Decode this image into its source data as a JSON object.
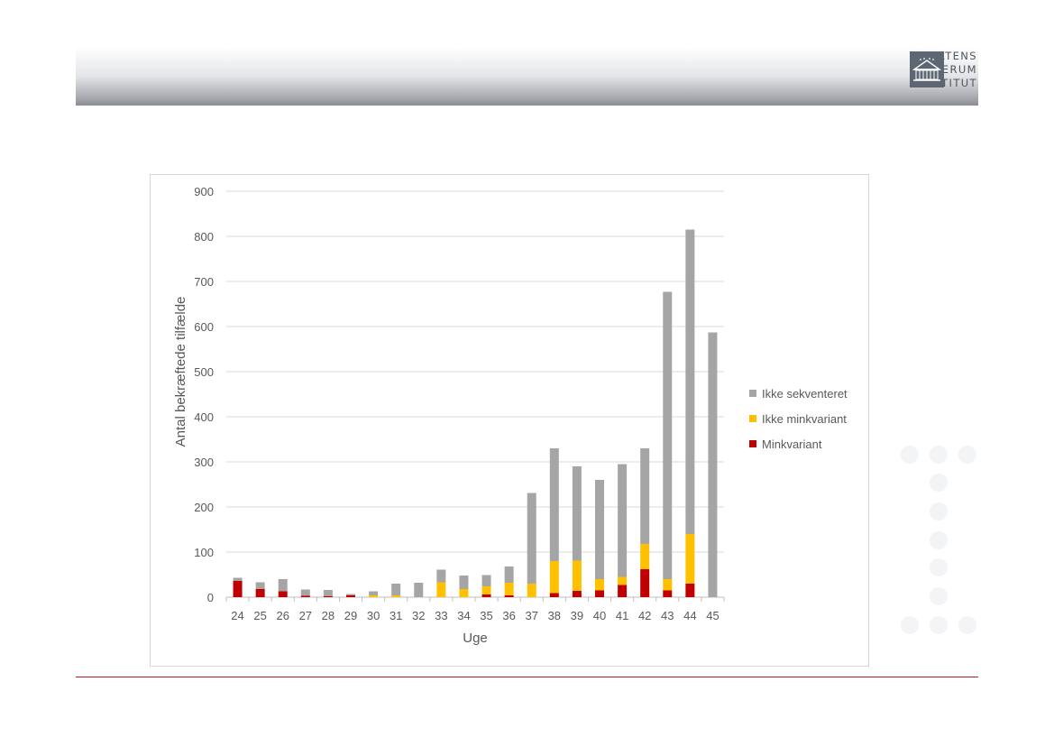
{
  "logo": {
    "line1": "STATENS",
    "line2": "SERUM",
    "line3": "INSTITUT"
  },
  "colors": {
    "Minkvariant": "#c00000",
    "Ikke minkvariant": "#ffc000",
    "Ikke sekventeret": "#a5a5a5",
    "grid": "#d9d9d9",
    "footer_line": "#b61d22"
  },
  "chart_data": {
    "type": "bar",
    "stacked": true,
    "xlabel": "Uge",
    "ylabel": "Antal bekræftede tilfælde",
    "ylim": [
      0,
      900
    ],
    "yticks": [
      0,
      100,
      200,
      300,
      400,
      500,
      600,
      700,
      800,
      900
    ],
    "grid": true,
    "legend_position": "right",
    "categories": [
      "24",
      "25",
      "26",
      "27",
      "28",
      "29",
      "30",
      "31",
      "32",
      "33",
      "34",
      "35",
      "36",
      "37",
      "38",
      "39",
      "40",
      "41",
      "42",
      "43",
      "44",
      "45"
    ],
    "series": [
      {
        "name": "Minkvariant",
        "values": [
          36,
          18,
          13,
          3,
          2,
          4,
          0,
          0,
          0,
          0,
          0,
          6,
          4,
          0,
          9,
          14,
          15,
          27,
          62,
          15,
          30,
          0
        ]
      },
      {
        "name": "Ikke minkvariant",
        "values": [
          0,
          0,
          0,
          0,
          0,
          0,
          4,
          4,
          0,
          33,
          18,
          18,
          28,
          30,
          71,
          67,
          25,
          18,
          56,
          25,
          110,
          0
        ]
      },
      {
        "name": "Ikke sekventeret",
        "values": [
          7,
          15,
          27,
          14,
          14,
          3,
          9,
          26,
          32,
          28,
          30,
          25,
          36,
          201,
          250,
          209,
          220,
          250,
          212,
          637,
          675,
          587
        ]
      }
    ],
    "legend_order": [
      "Ikke sekventeret",
      "Ikke minkvariant",
      "Minkvariant"
    ]
  }
}
